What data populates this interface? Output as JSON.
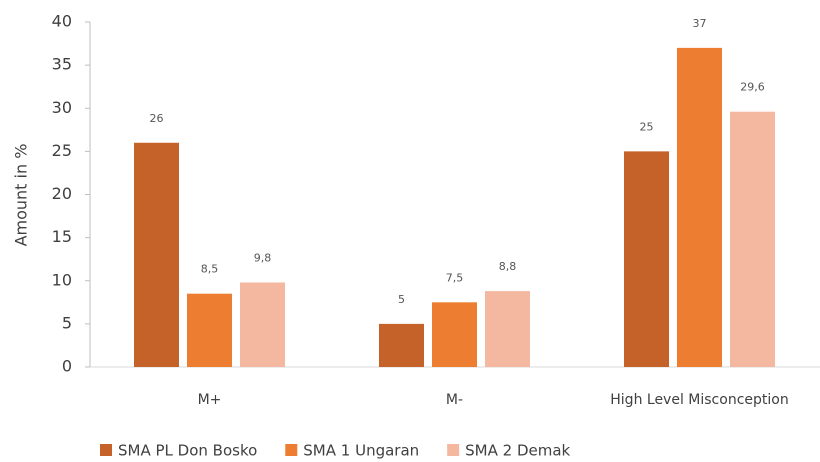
{
  "chart_data": {
    "type": "bar",
    "y_label": "Amount in %",
    "categories": [
      "M+",
      "M-",
      "High Level Misconception"
    ],
    "series": [
      {
        "name": "SMA PL Don Bosko",
        "color": "#c5622a",
        "values": [
          26,
          5,
          25
        ],
        "value_labels": [
          "26",
          "5",
          "25"
        ]
      },
      {
        "name": "SMA 1 Ungaran",
        "color": "#ed7d31",
        "values": [
          8.5,
          7.5,
          37
        ],
        "value_labels": [
          "8,5",
          "7,5",
          "37"
        ]
      },
      {
        "name": "SMA 2 Demak",
        "color": "#f4b8a0",
        "values": [
          9.8,
          8.8,
          29.6
        ],
        "value_labels": [
          "9,8",
          "8,8",
          "29,6"
        ]
      }
    ],
    "ylim": [
      0,
      40
    ],
    "yticks": [
      0,
      5,
      10,
      15,
      20,
      25,
      30,
      35,
      40
    ],
    "grid": false,
    "legend": "bottom"
  }
}
